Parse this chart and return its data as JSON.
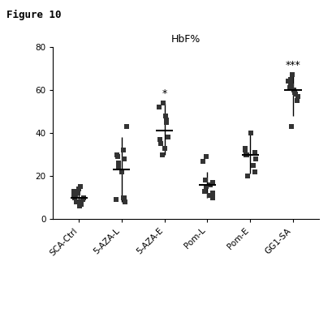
{
  "title": "HbF%",
  "figure_label": "Figure 10",
  "categories": [
    "SCA-Ctrl",
    "5-AZA-L",
    "5-AZA-E",
    "Pom-L",
    "Pom-E",
    "GG1-SA"
  ],
  "ylim": [
    0,
    80
  ],
  "yticks": [
    0,
    20,
    40,
    60,
    80
  ],
  "significance": {
    "5-AZA-E": "*",
    "GG1-SA": "***"
  },
  "groups": {
    "SCA-Ctrl": {
      "points": [
        6,
        7,
        8,
        8,
        9,
        10,
        10,
        11,
        11,
        12,
        13,
        14,
        15
      ],
      "mean": 10,
      "err_low": 8,
      "err_high": 15
    },
    "5-AZA-L": {
      "points": [
        8,
        9,
        10,
        10,
        22,
        24,
        26,
        28,
        29,
        30,
        32,
        43
      ],
      "mean": 23,
      "err_low": 8,
      "err_high": 38
    },
    "5-AZA-E": {
      "points": [
        30,
        33,
        35,
        37,
        38,
        45,
        46,
        48,
        52,
        54
      ],
      "mean": 41,
      "err_low": 30,
      "err_high": 54
    },
    "Pom-L": {
      "points": [
        10,
        11,
        12,
        13,
        15,
        16,
        17,
        18,
        27,
        29
      ],
      "mean": 16,
      "err_low": 10,
      "err_high": 22
    },
    "Pom-E": {
      "points": [
        20,
        22,
        25,
        28,
        30,
        30,
        31,
        32,
        33,
        40
      ],
      "mean": 30,
      "err_low": 21,
      "err_high": 40
    },
    "GG1-SA": {
      "points": [
        43,
        55,
        57,
        58,
        59,
        60,
        61,
        62,
        63,
        64,
        65,
        67
      ],
      "mean": 60,
      "err_low": 48,
      "err_high": 67
    }
  },
  "dot_color": "#333333",
  "mean_line_color": "#000000",
  "error_color": "#000000",
  "background_color": "#ffffff",
  "axis_color": "#000000",
  "sig_fontsize": 9,
  "label_fontsize": 7.5,
  "title_fontsize": 9,
  "figure_label_fontsize": 9
}
